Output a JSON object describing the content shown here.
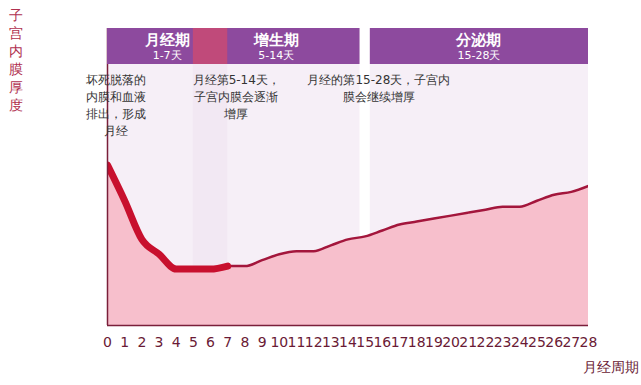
{
  "chart_data": {
    "type": "area",
    "x_label": "月经周期",
    "y_label": "子宫内膜厚度",
    "x": [
      0,
      1,
      2,
      3,
      4,
      5,
      6,
      7,
      8,
      9,
      10,
      11,
      12,
      13,
      14,
      15,
      16,
      17,
      18,
      19,
      20,
      21,
      22,
      23,
      24,
      25,
      26,
      27,
      28
    ],
    "values": [
      54,
      42,
      29,
      24,
      19,
      19,
      19,
      20,
      20,
      22,
      24,
      25,
      25,
      27,
      29,
      30,
      32,
      34,
      35,
      36,
      37,
      38,
      39,
      40,
      40,
      42,
      44,
      45,
      47
    ],
    "xlim": [
      0,
      28
    ],
    "xticks": [
      0,
      1,
      2,
      3,
      4,
      5,
      6,
      7,
      8,
      9,
      10,
      11,
      12,
      13,
      14,
      15,
      16,
      17,
      18,
      19,
      20,
      21,
      22,
      23,
      24,
      25,
      26,
      27,
      28
    ],
    "ylim": [
      0,
      100
    ],
    "tick_labels": "x",
    "color": "#f7bfcc",
    "phases": [
      {
        "name": "月经期",
        "days": "1-7天",
        "start": 0,
        "end": 7,
        "text": [
          "坏死脱落的",
          "内膜和血液",
          "排出，形成",
          "月经"
        ]
      },
      {
        "name": "增生期",
        "days": "5-14天",
        "start": 5,
        "end": 14.7,
        "text": [
          "月经第5-14天，",
          "子宫内膜会逐渐",
          "增厚"
        ]
      },
      {
        "name": "分泌期",
        "days": "15-28天",
        "start": 15.3,
        "end": 28,
        "text": [
          "月经的第15-28天，子宫内",
          "膜会继续增厚"
        ]
      }
    ]
  }
}
